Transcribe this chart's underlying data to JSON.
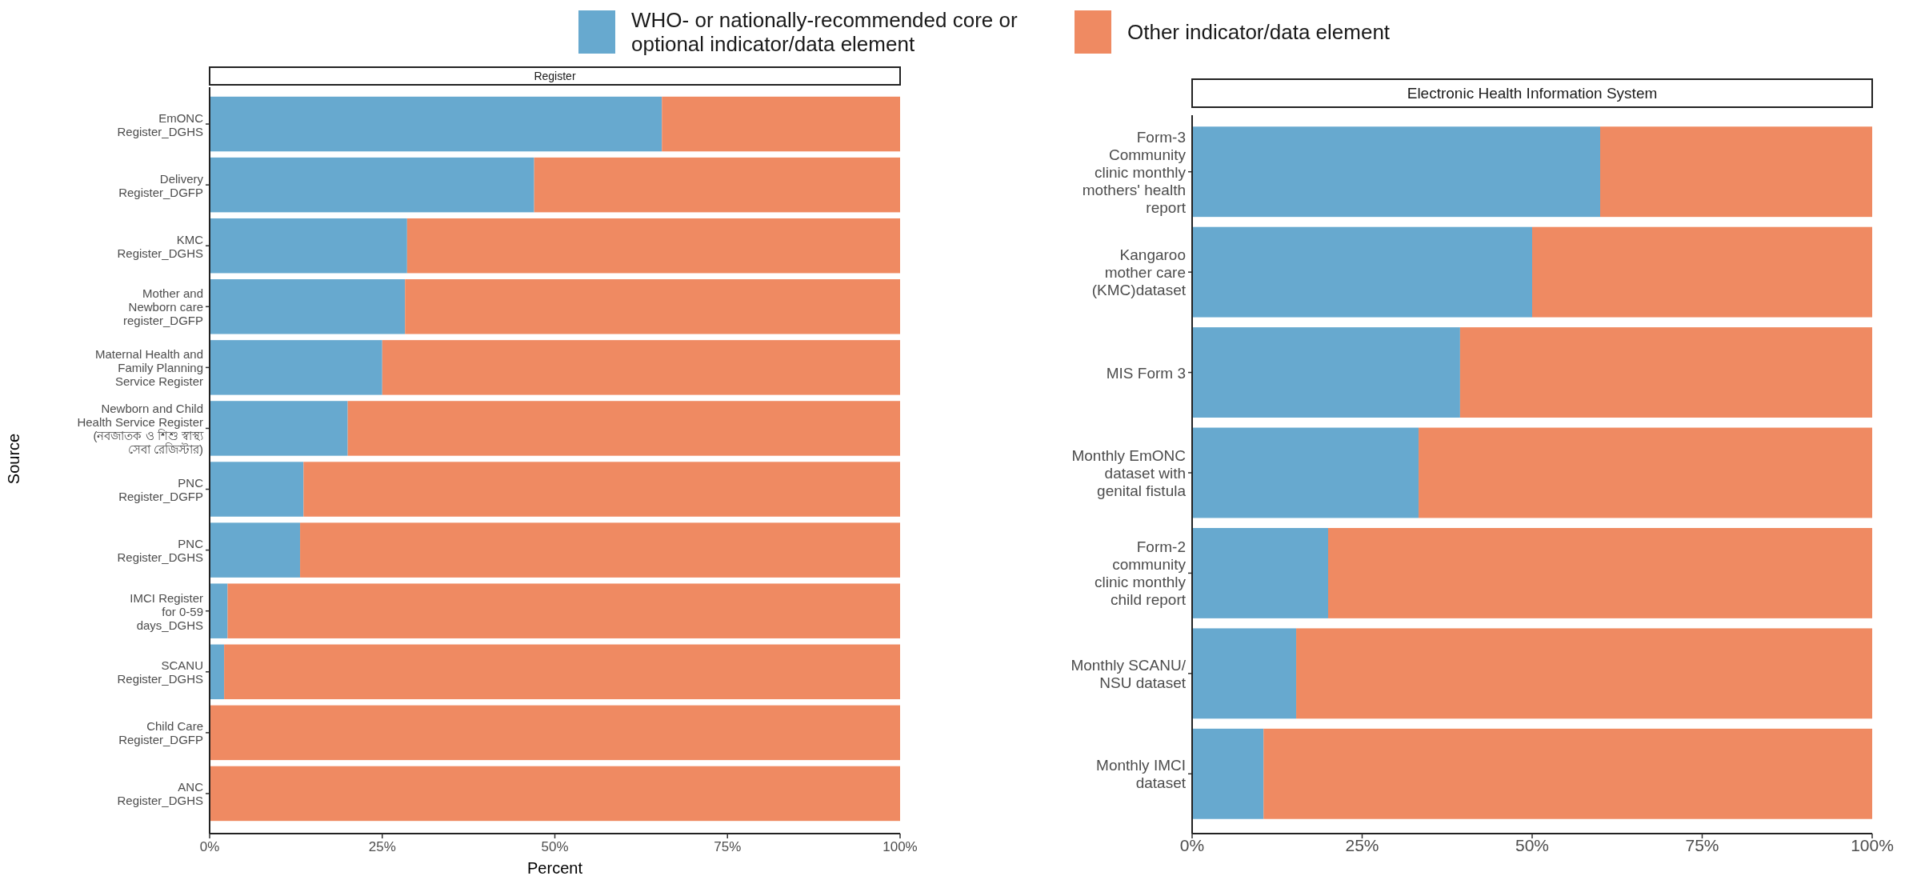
{
  "chart_data": [
    {
      "type": "bar",
      "orientation": "horizontal",
      "stacked": true,
      "title": "Register",
      "xlabel": "Percent",
      "ylabel": "Source",
      "legend": "top",
      "categories": [
        "EmONC\nRegister_DGHS",
        "Delivery\nRegister_DGFP",
        "KMC\nRegister_DGHS",
        "Mother and\nNewborn care\nregister_DGFP",
        "Maternal Health and\nFamily Planning\nService Register",
        "Newborn and Child\nHealth Service Register\n(নবজাতক ও শিশু স্বাস্থ্য\nসেবা রেজিস্টার)",
        "PNC\nRegister_DGFP",
        "PNC\nRegister_DGHS",
        "IMCI Register\nfor 0-59\ndays_DGHS",
        "SCANU\nRegister_DGHS",
        "Child Care\nRegister_DGFP",
        "ANC\nRegister_DGHS"
      ],
      "series": [
        {
          "name": "WHO- or nationally-recommended core or\noptional indicator/data element",
          "color": "#67a9cf",
          "values": [
            65.5,
            47,
            28.6,
            28.3,
            25,
            20,
            13.6,
            13.1,
            2.6,
            2.1,
            0,
            0
          ]
        },
        {
          "name": "Other indicator/data element",
          "color": "#ef8a62",
          "values": [
            34.5,
            53,
            71.4,
            71.7,
            75,
            80,
            86.4,
            86.9,
            97.4,
            97.9,
            100,
            100
          ]
        }
      ],
      "xlim": [
        0,
        100
      ],
      "xticks": [
        {
          "value": 0,
          "label": "0%"
        },
        {
          "value": 25,
          "label": "25%"
        },
        {
          "value": 50,
          "label": "50%"
        },
        {
          "value": 75,
          "label": "75%"
        },
        {
          "value": 100,
          "label": "100%"
        }
      ]
    },
    {
      "type": "bar",
      "orientation": "horizontal",
      "stacked": true,
      "title": "Electronic Health Information System",
      "legend": "top",
      "categories": [
        "Form-3\nCommunity\nclinic monthly\nmothers' health\nreport",
        "Kangaroo\nmother care\n(KMC)dataset",
        "MIS Form 3",
        "Monthly EmONC\ndataset with\ngenital fistula",
        "Form-2\ncommunity\nclinic monthly\nchild report",
        "Monthly SCANU/\nNSU dataset",
        "Monthly IMCI\ndataset"
      ],
      "series": [
        {
          "name": "WHO- or nationally-recommended core or\noptional indicator/data element",
          "color": "#67a9cf",
          "values": [
            60,
            50,
            39.4,
            33.3,
            20,
            15.3,
            10.5
          ]
        },
        {
          "name": "Other indicator/data element",
          "color": "#ef8a62",
          "values": [
            40,
            50,
            60.6,
            66.7,
            80,
            84.7,
            89.5
          ]
        }
      ],
      "xlim": [
        0,
        100
      ],
      "xticks": [
        {
          "value": 0,
          "label": "0%"
        },
        {
          "value": 25,
          "label": "25%"
        },
        {
          "value": 50,
          "label": "50%"
        },
        {
          "value": 75,
          "label": "75%"
        },
        {
          "value": 100,
          "label": "100%"
        }
      ]
    }
  ]
}
